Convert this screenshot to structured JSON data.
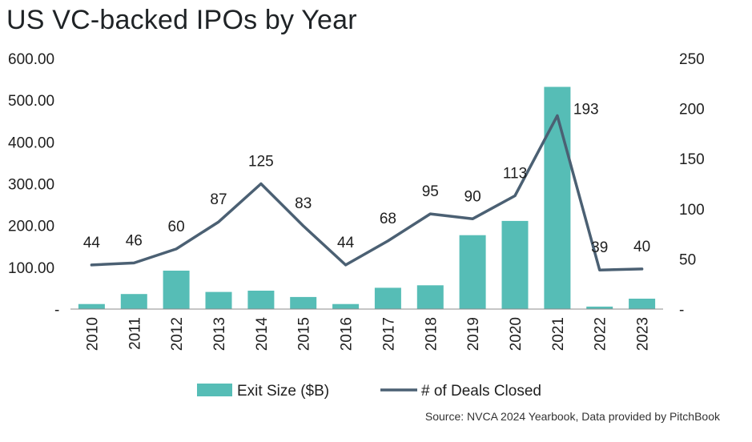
{
  "title": "US VC-backed IPOs by Year",
  "source": "Source: NVCA 2024 Yearbook, Data provided by PitchBook",
  "colors": {
    "bar": "#56bdb6",
    "line": "#4b6073",
    "axis": "#8c8c8c"
  },
  "chart_data": {
    "type": "bar",
    "categories": [
      "2010",
      "2011",
      "2012",
      "2013",
      "2014",
      "2015",
      "2016",
      "2017",
      "2018",
      "2019",
      "2020",
      "2021",
      "2022",
      "2023"
    ],
    "series": [
      {
        "name": "Exit Size ($B)",
        "kind": "bar",
        "axis": "left",
        "values": [
          12,
          36,
          92,
          41,
          44,
          29,
          12,
          51,
          57,
          177,
          211,
          532,
          6,
          25
        ]
      },
      {
        "name": "# of Deals Closed",
        "kind": "line",
        "axis": "right",
        "values": [
          44,
          46,
          60,
          87,
          125,
          83,
          44,
          68,
          95,
          90,
          113,
          193,
          39,
          40
        ],
        "labels": [
          "44",
          "46",
          "60",
          "87",
          "125",
          "83",
          "44",
          "68",
          "95",
          "90",
          "113",
          "193",
          "39",
          "40"
        ]
      }
    ],
    "y_left": {
      "min": 0,
      "max": 600,
      "ticks": [
        "-",
        "100.00",
        "200.00",
        "300.00",
        "400.00",
        "500.00",
        "600.00"
      ]
    },
    "y_right": {
      "min": 0,
      "max": 250,
      "ticks": [
        "-",
        "50",
        "100",
        "150",
        "200",
        "250"
      ]
    },
    "legend": {
      "position": "bottom",
      "items": [
        "Exit Size ($B)",
        "# of Deals Closed"
      ]
    },
    "grid": false
  }
}
